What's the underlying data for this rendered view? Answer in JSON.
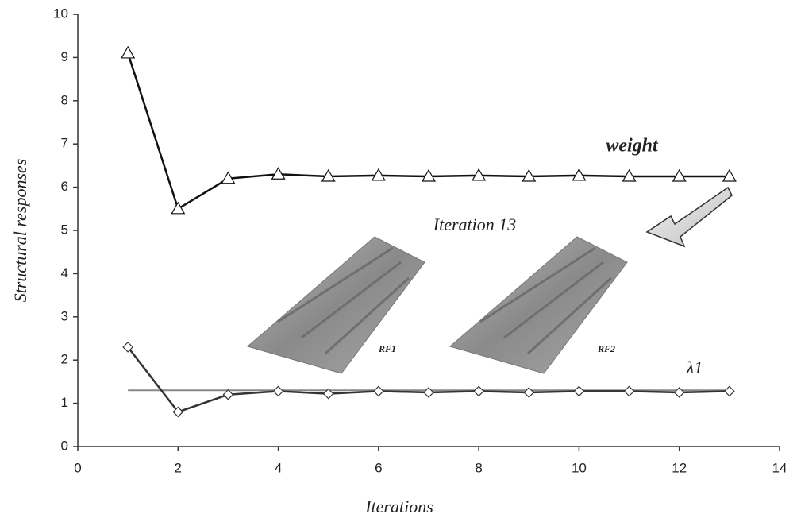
{
  "chart_data": {
    "type": "line",
    "x_label": "Iterations",
    "y_label": "Structural responses",
    "x": [
      1,
      2,
      3,
      4,
      5,
      6,
      7,
      8,
      9,
      10,
      11,
      12,
      13
    ],
    "series": [
      {
        "name": "weight",
        "color": "#111111",
        "marker": "triangle",
        "values": [
          9.1,
          5.5,
          6.2,
          6.3,
          6.25,
          6.27,
          6.25,
          6.27,
          6.25,
          6.27,
          6.25,
          6.25,
          6.25
        ]
      },
      {
        "name": "λ1",
        "color": "#333333",
        "marker": "diamond",
        "values": [
          2.3,
          0.8,
          1.2,
          1.28,
          1.22,
          1.28,
          1.25,
          1.28,
          1.25,
          1.28,
          1.28,
          1.25,
          1.28
        ]
      }
    ],
    "reference_line": {
      "y": 1.3,
      "x": [
        1,
        13
      ],
      "color": "#888888"
    },
    "annotations": [
      "Iteration 13",
      "RF1",
      "RF2"
    ],
    "xlim": [
      0,
      14
    ],
    "xticks": [
      0,
      2,
      4,
      6,
      8,
      10,
      12,
      14
    ],
    "ylim": [
      0,
      10
    ],
    "yticks": [
      0,
      1,
      2,
      3,
      4,
      5,
      6,
      7,
      8,
      9,
      10
    ],
    "grid": false
  }
}
